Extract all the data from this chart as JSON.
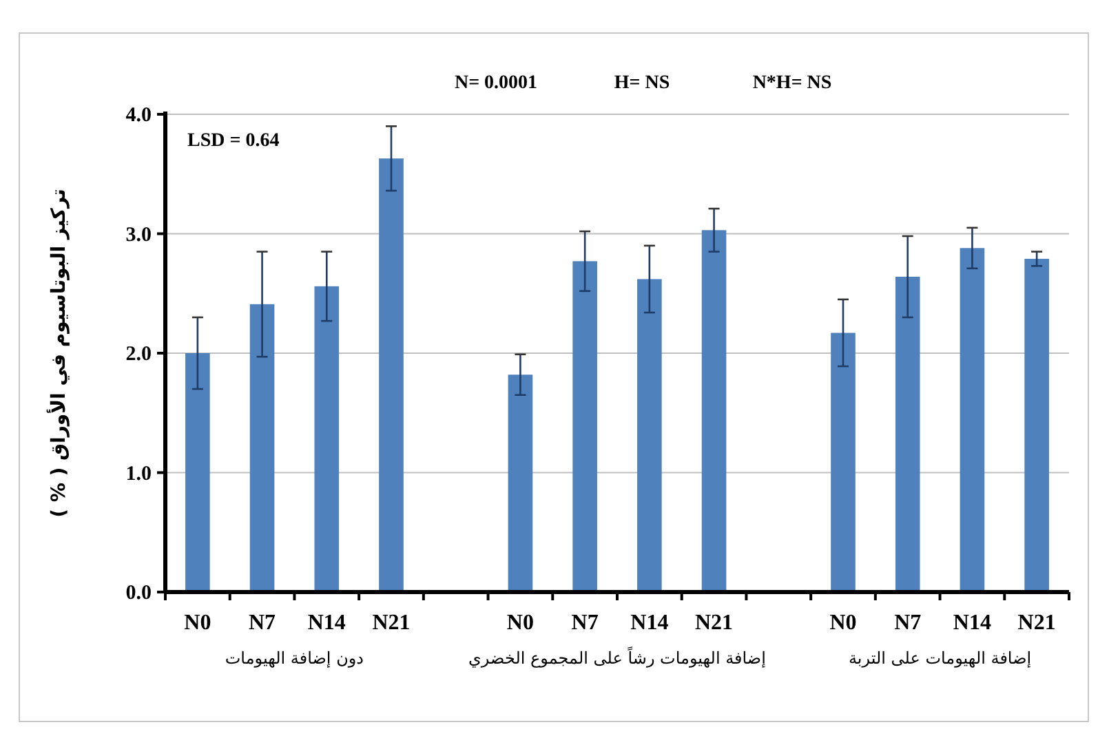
{
  "chart_data": {
    "type": "bar",
    "ylabel": "تركيز البوتاسيوم في الأوراق ( % )",
    "categories": [
      "N0",
      "N7",
      "N14",
      "N21",
      null,
      "N0",
      "N7",
      "N14",
      "N21",
      null,
      "N0",
      "N7",
      "N14",
      "N21"
    ],
    "values": [
      2.0,
      2.41,
      2.56,
      3.63,
      null,
      1.82,
      2.77,
      2.62,
      3.03,
      null,
      2.17,
      2.64,
      2.88,
      2.79
    ],
    "errors": [
      0.3,
      0.44,
      0.29,
      0.27,
      null,
      0.17,
      0.25,
      0.28,
      0.18,
      null,
      0.28,
      0.34,
      0.17,
      0.06
    ],
    "color": "#4f81bd",
    "ylim": [
      0,
      4
    ],
    "yticks": [
      {
        "value": 0,
        "label": "0.0"
      },
      {
        "value": 1,
        "label": "1.0"
      },
      {
        "value": 2,
        "label": "2.0"
      },
      {
        "value": 3,
        "label": "3.0"
      },
      {
        "value": 4,
        "label": "4.0"
      }
    ],
    "grid": "y",
    "annotations": [
      "N= 0.0001",
      "H= NS",
      "N*H= NS",
      "LSD = 0.64",
      "دون إضافة الهيومات",
      "إضافة الهيومات رشاً على المجموع الخضري",
      "إضافة الهيومات على التربة"
    ]
  }
}
